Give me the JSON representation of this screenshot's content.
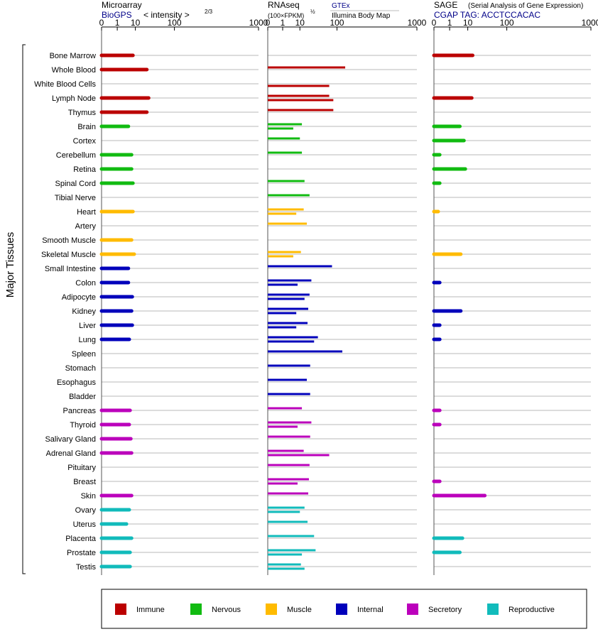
{
  "chart_data": {
    "type": "bar",
    "y_axis_title": "Major Tissues",
    "tissues": [
      "Bone Marrow",
      "Whole Blood",
      "White Blood Cells",
      "Lymph Node",
      "Thymus",
      "Brain",
      "Cortex",
      "Cerebellum",
      "Retina",
      "Spinal Cord",
      "Tibial Nerve",
      "Heart",
      "Artery",
      "Smooth Muscle",
      "Skeletal Muscle",
      "Small Intestine",
      "Colon",
      "Adipocyte",
      "Kidney",
      "Liver",
      "Lung",
      "Spleen",
      "Stomach",
      "Esophagus",
      "Bladder",
      "Pancreas",
      "Thyroid",
      "Salivary Gland",
      "Adrenal Gland",
      "Pituitary",
      "Breast",
      "Skin",
      "Ovary",
      "Uterus",
      "Placenta",
      "Prostate",
      "Testis"
    ],
    "groups": [
      "Immune",
      "Immune",
      "Immune",
      "Immune",
      "Immune",
      "Nervous",
      "Nervous",
      "Nervous",
      "Nervous",
      "Nervous",
      "Nervous",
      "Muscle",
      "Muscle",
      "Muscle",
      "Muscle",
      "Internal",
      "Internal",
      "Internal",
      "Internal",
      "Internal",
      "Internal",
      "Internal",
      "Internal",
      "Internal",
      "Internal",
      "Secretory",
      "Secretory",
      "Secretory",
      "Secretory",
      "Secretory",
      "Secretory",
      "Secretory",
      "Reproductive",
      "Reproductive",
      "Reproductive",
      "Reproductive",
      "Reproductive"
    ],
    "colors": {
      "Immune": "#bb0000",
      "Nervous": "#11bb11",
      "Muscle": "#ffbb00",
      "Internal": "#0000bb",
      "Secretory": "#bb00bb",
      "Reproductive": "#11bbbb"
    },
    "legend": [
      "Immune",
      "Nervous",
      "Muscle",
      "Internal",
      "Secretory",
      "Reproductive"
    ],
    "axis_ticks": [
      0,
      1,
      10,
      100,
      1000
    ],
    "xlim": [
      0,
      1000
    ],
    "panels": [
      {
        "title": "Microarray",
        "subtitle": "BioGPS",
        "scale_label": "< intensity >",
        "scale_exp": "2/3",
        "values": [
          8,
          24,
          null,
          27,
          24,
          5,
          null,
          7,
          7,
          8,
          null,
          8,
          null,
          7,
          9,
          5,
          5,
          7.5,
          7,
          7.5,
          5.5,
          null,
          null,
          null,
          null,
          6,
          5.5,
          6.5,
          7,
          null,
          null,
          7,
          5.5,
          4,
          7,
          6,
          6
        ]
      },
      {
        "title": "RNAseq",
        "scale_label": "(100×FPKM)",
        "scale_exp": "½",
        "gtex_label": "GTEx",
        "ibm_label": "Illumina Body Map",
        "gtex": [
          null,
          140,
          null,
          70,
          85,
          12,
          10,
          12,
          null,
          15,
          22,
          14,
          18,
          null,
          11,
          80,
          25,
          22,
          20,
          19,
          38,
          125,
          23,
          18,
          23,
          12,
          25,
          23,
          14,
          22,
          21,
          20,
          15,
          19,
          30,
          33,
          11
        ],
        "ibm": [
          null,
          null,
          70,
          85,
          null,
          5,
          null,
          null,
          null,
          null,
          null,
          7,
          null,
          null,
          5,
          null,
          8,
          15,
          7,
          7,
          30,
          null,
          null,
          null,
          null,
          null,
          8,
          null,
          70,
          null,
          8,
          null,
          10,
          null,
          null,
          12,
          15
        ]
      },
      {
        "title": "SAGE",
        "subtitle_note": "(Serial Analysis of Gene Expression)",
        "tag_label": "CGAP TAG: ACCTCCACAC",
        "values": [
          15,
          null,
          null,
          14,
          null,
          4.5,
          7,
          0.05,
          8,
          0.05,
          null,
          0.02,
          null,
          null,
          5,
          null,
          0.05,
          null,
          5,
          0.05,
          0.05,
          null,
          null,
          null,
          null,
          0.05,
          0.05,
          null,
          null,
          null,
          0.05,
          34,
          null,
          null,
          6,
          4.5,
          null
        ]
      }
    ]
  }
}
